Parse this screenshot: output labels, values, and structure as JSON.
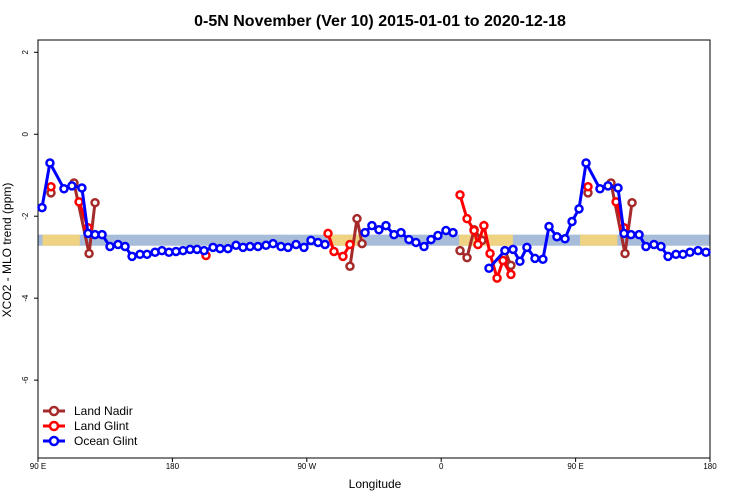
{
  "chart_data": {
    "type": "line",
    "title": "0-5N November (Ver 10)   2015-01-01 to 2020-12-18",
    "x_label": "Longitude",
    "y_label": "XCO2 - MLO trend (ppm)",
    "xlim": [
      90,
      540
    ],
    "xticks": [
      {
        "value": 90,
        "label": "90 E"
      },
      {
        "value": 180,
        "label": "180"
      },
      {
        "value": 270,
        "label": "90 W"
      },
      {
        "value": 360,
        "label": "0"
      },
      {
        "value": 450,
        "label": "90 E"
      },
      {
        "value": 540,
        "label": "180"
      }
    ],
    "ylim": [
      -7.9,
      2.3
    ],
    "yticks": [
      2,
      0,
      -2,
      -4,
      -6
    ],
    "reference_band": [
      -2.45,
      -2.72
    ],
    "band_color": "#a7bcd8",
    "land_spans": [
      [
        93,
        118
      ],
      [
        285,
        308
      ],
      [
        372,
        408
      ],
      [
        453,
        478
      ]
    ],
    "land_color": "#f7d57a",
    "legend": "bottom-left",
    "series": [
      {
        "name": "Land Nadir",
        "color": "#a52a2a",
        "x": [
          98.7,
          null,
          114.1,
          124.2,
          128.2,
          null,
          298.9,
          303.6,
          307.0,
          null,
          372.6,
          377.3,
          382.0,
          387.3,
          null,
          402.7,
          406.7,
          null,
          458.3,
          null,
          473.7,
          483.1,
          487.8
        ],
        "values": [
          -1.43,
          null,
          -1.19,
          -2.91,
          -1.67,
          null,
          -3.22,
          -2.06,
          -2.67,
          null,
          -2.84,
          -3.01,
          -2.33,
          -2.59,
          null,
          -2.84,
          -3.2,
          null,
          -1.43,
          null,
          -1.19,
          -2.91,
          -1.67
        ]
      },
      {
        "name": "Land Glint",
        "color": "#ff0000",
        "x": [
          98.7,
          null,
          117.5,
          123.5,
          null,
          202.5,
          null,
          284.2,
          288.2,
          294.2,
          298.9,
          null,
          372.6,
          377.3,
          382.0,
          384.6,
          388.6,
          392.7,
          397.4,
          401.4,
          406.7,
          null,
          458.3,
          null,
          477.1,
          482.4
        ],
        "values": [
          -1.28,
          null,
          -1.65,
          -2.28,
          null,
          -2.96,
          null,
          -2.42,
          -2.86,
          -2.98,
          -2.69,
          null,
          -1.48,
          -2.06,
          -2.35,
          -2.69,
          -2.23,
          -2.91,
          -3.51,
          -3.08,
          -3.42,
          null,
          -1.28,
          null,
          -1.65,
          -2.28
        ]
      },
      {
        "name": "Ocean Glint",
        "color": "#0000ff",
        "x": [
          92.7,
          98.0,
          107.4,
          112.7,
          119.4,
          123.5,
          128.2,
          132.9,
          138.2,
          143.6,
          148.3,
          153.0,
          158.3,
          163.0,
          168.4,
          173.0,
          177.7,
          182.4,
          187.1,
          191.8,
          196.5,
          201.2,
          207.2,
          211.9,
          217.2,
          222.6,
          227.3,
          232.0,
          237.3,
          242.7,
          247.4,
          252.7,
          257.4,
          262.8,
          268.1,
          272.8,
          277.5,
          282.2,
          null,
          309.0,
          313.6,
          318.3,
          323.0,
          328.4,
          333.1,
          338.4,
          343.1,
          348.5,
          353.2,
          357.8,
          363.2,
          367.9,
          null,
          392.0,
          402.7,
          408.1,
          412.7,
          417.4,
          422.8,
          428.1,
          432.2,
          437.5,
          442.9,
          447.6,
          452.3,
          457.0,
          466.3,
          471.7,
          478.4,
          482.4,
          487.1,
          492.5,
          497.1,
          502.5,
          507.2,
          511.9,
          517.2,
          521.9,
          526.6,
          532.0,
          537.3
        ],
        "values": [
          -1.79,
          -0.7,
          -1.33,
          -1.26,
          -1.31,
          -2.42,
          -2.45,
          -2.45,
          -2.74,
          -2.69,
          -2.74,
          -2.98,
          -2.93,
          -2.93,
          -2.88,
          -2.84,
          -2.88,
          -2.86,
          -2.84,
          -2.81,
          -2.81,
          -2.84,
          -2.76,
          -2.79,
          -2.79,
          -2.71,
          -2.76,
          -2.74,
          -2.74,
          -2.71,
          -2.67,
          -2.74,
          -2.76,
          -2.69,
          -2.76,
          -2.59,
          -2.64,
          -2.69,
          null,
          -2.4,
          -2.23,
          -2.33,
          -2.23,
          -2.45,
          -2.4,
          -2.57,
          -2.64,
          -2.74,
          -2.57,
          -2.47,
          -2.35,
          -2.4,
          null,
          -3.27,
          -2.84,
          -2.81,
          -3.1,
          -2.76,
          -3.03,
          -3.05,
          -2.25,
          -2.5,
          -2.55,
          -2.13,
          -1.82,
          -0.7,
          -1.33,
          -1.26,
          -1.31,
          -2.42,
          -2.45,
          -2.45,
          -2.74,
          -2.69,
          -2.74,
          -2.98,
          -2.93,
          -2.93,
          -2.88,
          -2.84,
          -2.88
        ]
      }
    ]
  }
}
